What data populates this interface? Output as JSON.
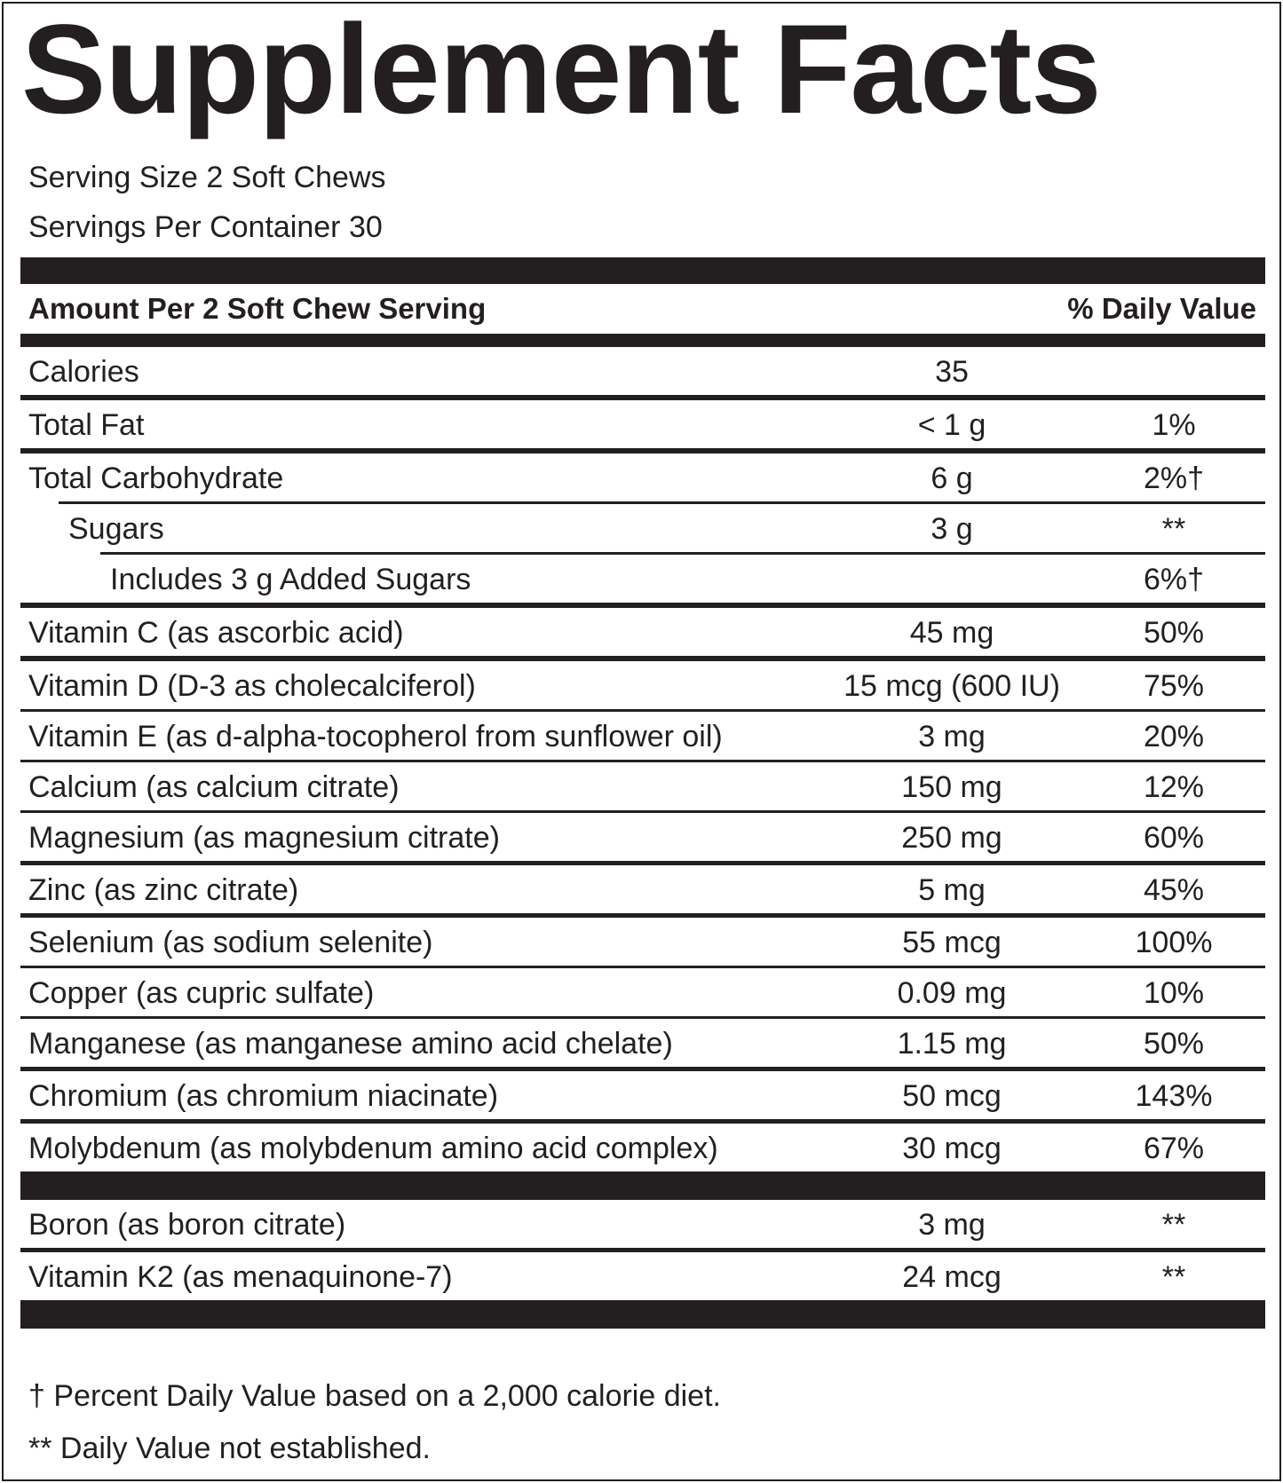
{
  "title": "Supplement Facts",
  "serving_size": "Serving Size 2 Soft Chews",
  "servings_per_container": "Servings Per Container 30",
  "header": {
    "amount": "Amount Per 2 Soft Chew Serving",
    "daily_value": "% Daily Value"
  },
  "rows": [
    {
      "name": "Calories",
      "amount": "35",
      "dv": "",
      "indent": 0,
      "line": "thick"
    },
    {
      "name": "Total Fat",
      "amount": "< 1 g",
      "dv": "1%",
      "indent": 0,
      "line": "thick"
    },
    {
      "name": "Total Carbohydrate",
      "amount": "6 g",
      "dv": "2%†",
      "indent": 0,
      "line": "thin-indent1"
    },
    {
      "name": "Sugars",
      "amount": "3 g",
      "dv": "**",
      "indent": 1,
      "line": "thin-indent2"
    },
    {
      "name": "Includes 3 g Added Sugars",
      "amount": "",
      "dv": "6%†",
      "indent": 2,
      "line": "thick"
    },
    {
      "name": "Vitamin C (as ascorbic acid)",
      "amount": "45 mg",
      "dv": "50%",
      "indent": 0,
      "line": "thick"
    },
    {
      "name": "Vitamin D (D-3 as cholecalciferol)",
      "amount": "15 mcg (600 IU)",
      "dv": "75%",
      "indent": 0,
      "line": "thin"
    },
    {
      "name": "Vitamin E (as d-alpha-tocopherol from sunflower oil)",
      "amount": "3 mg",
      "dv": "20%",
      "indent": 0,
      "line": "thin"
    },
    {
      "name": "Calcium (as calcium citrate)",
      "amount": "150 mg",
      "dv": "12%",
      "indent": 0,
      "line": "thin"
    },
    {
      "name": "Magnesium (as magnesium citrate)",
      "amount": "250 mg",
      "dv": "60%",
      "indent": 0,
      "line": "medium"
    },
    {
      "name": "Zinc (as zinc citrate)",
      "amount": "5 mg",
      "dv": "45%",
      "indent": 0,
      "line": "medium"
    },
    {
      "name": "Selenium (as sodium selenite)",
      "amount": "55 mcg",
      "dv": "100%",
      "indent": 0,
      "line": "thin"
    },
    {
      "name": "Copper (as cupric sulfate)",
      "amount": "0.09 mg",
      "dv": "10%",
      "indent": 0,
      "line": "thin"
    },
    {
      "name": "Manganese (as manganese amino acid chelate)",
      "amount": "1.15 mg",
      "dv": "50%",
      "indent": 0,
      "line": "medium"
    },
    {
      "name": "Chromium (as chromium niacinate)",
      "amount": "50 mcg",
      "dv": "143%",
      "indent": 0,
      "line": "medium"
    },
    {
      "name": "Molybdenum (as molybdenum amino acid complex)",
      "amount": "30 mcg",
      "dv": "67%",
      "indent": 0,
      "line": "bar"
    },
    {
      "name": "Boron (as boron citrate)",
      "amount": "3 mg",
      "dv": "**",
      "indent": 0,
      "line": "medium"
    },
    {
      "name": "Vitamin K2 (as menaquinone-7)",
      "amount": "24 mcg",
      "dv": "**",
      "indent": 0,
      "line": "bar"
    }
  ],
  "footnotes": [
    "† Percent Daily Value based on a 2,000 calorie diet.",
    "** Daily Value not established."
  ]
}
